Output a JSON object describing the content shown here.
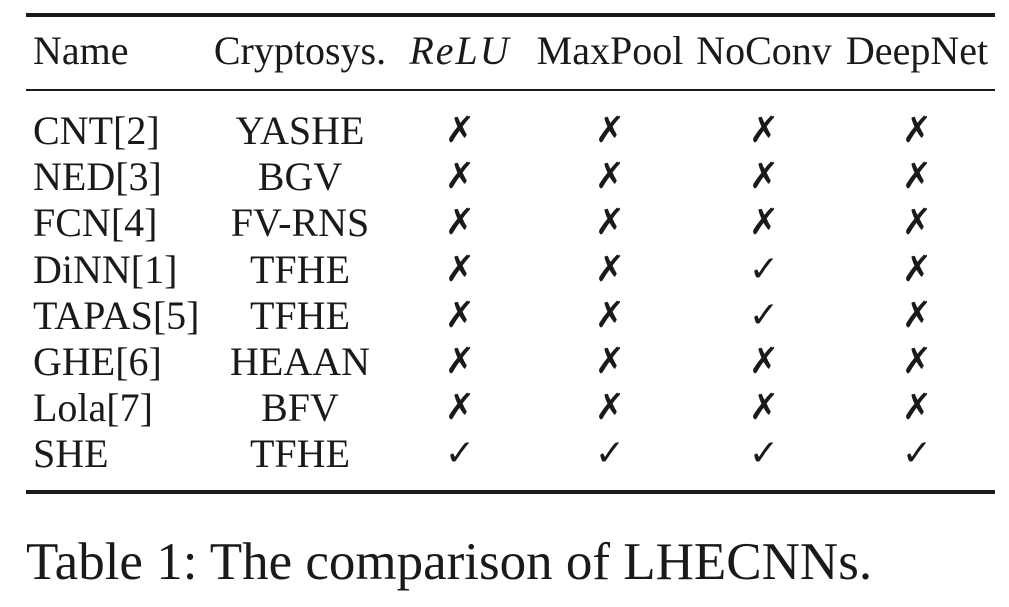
{
  "table": {
    "headers": {
      "name": "Name",
      "crypto": "Cryptosys.",
      "relu": "ReLU",
      "maxpool": "MaxPool",
      "noconv": "NoConv",
      "deepnet": "DeepNet"
    },
    "rows": [
      {
        "name": "CNT[2]",
        "crypto": "YASHE",
        "relu": "✗",
        "maxpool": "✗",
        "noconv": "✗",
        "deepnet": "✗"
      },
      {
        "name": "NED[3]",
        "crypto": "BGV",
        "relu": "✗",
        "maxpool": "✗",
        "noconv": "✗",
        "deepnet": "✗"
      },
      {
        "name": "FCN[4]",
        "crypto": "FV-RNS",
        "relu": "✗",
        "maxpool": "✗",
        "noconv": "✗",
        "deepnet": "✗"
      },
      {
        "name": "DiNN[1]",
        "crypto": "TFHE",
        "relu": "✗",
        "maxpool": "✗",
        "noconv": "✓",
        "deepnet": "✗"
      },
      {
        "name": "TAPAS[5]",
        "crypto": "TFHE",
        "relu": "✗",
        "maxpool": "✗",
        "noconv": "✓",
        "deepnet": "✗"
      },
      {
        "name": "GHE[6]",
        "crypto": "HEAAN",
        "relu": "✗",
        "maxpool": "✗",
        "noconv": "✗",
        "deepnet": "✗"
      },
      {
        "name": "Lola[7]",
        "crypto": "BFV",
        "relu": "✗",
        "maxpool": "✗",
        "noconv": "✗",
        "deepnet": "✗"
      },
      {
        "name": "SHE",
        "crypto": "TFHE",
        "relu": "✓",
        "maxpool": "✓",
        "noconv": "✓",
        "deepnet": "✓"
      }
    ]
  },
  "caption": "Table 1: The comparison of LHECNNs."
}
